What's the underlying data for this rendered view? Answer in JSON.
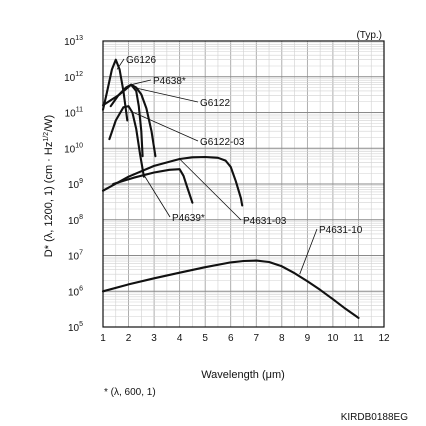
{
  "chart_data": {
    "type": "line",
    "title": "",
    "note_top": "(Typ.)",
    "xlabel": "Wavelength (μm)",
    "ylabel": "D* (λ, 1200, 1) (cm · Hz1/2/W)",
    "ylabel_parts": {
      "main": "D* (λ, 1200, 1) (cm · Hz",
      "sup": "1/2",
      "tail": "/W)"
    },
    "xlim": [
      1,
      12
    ],
    "ylim": [
      100000,
      10000000000000
    ],
    "yscale": "log",
    "grid": true,
    "xticks": [
      "1",
      "2",
      "3",
      "4",
      "5",
      "6",
      "7",
      "8",
      "9",
      "10",
      "11",
      "12"
    ],
    "yticks": [
      {
        "base": "10",
        "exp": "5"
      },
      {
        "base": "10",
        "exp": "6"
      },
      {
        "base": "10",
        "exp": "7"
      },
      {
        "base": "10",
        "exp": "8"
      },
      {
        "base": "10",
        "exp": "9"
      },
      {
        "base": "10",
        "exp": "10"
      },
      {
        "base": "10",
        "exp": "11"
      },
      {
        "base": "10",
        "exp": "12"
      },
      {
        "base": "10",
        "exp": "13"
      }
    ],
    "series": [
      {
        "name": "G6126",
        "x": [
          1.0,
          1.15,
          1.35,
          1.5,
          1.65,
          1.8,
          1.95
        ],
        "y": [
          120000000000.0,
          350000000000.0,
          1600000000000.0,
          3000000000000.0,
          1600000000000.0,
          400000000000.0,
          60000000000.0
        ]
      },
      {
        "name": "P4638*",
        "x": [
          1.0,
          1.3,
          1.6,
          1.9,
          2.1,
          2.3,
          2.5,
          2.7,
          2.9,
          3.05
        ],
        "y": [
          160000000000.0,
          220000000000.0,
          300000000000.0,
          450000000000.0,
          600000000000.0,
          500000000000.0,
          320000000000.0,
          130000000000.0,
          30000000000.0,
          6000000000.0
        ]
      },
      {
        "name": "G6122",
        "x": [
          1.3,
          1.6,
          1.9,
          2.1,
          2.3,
          2.4,
          2.5,
          2.55
        ],
        "y": [
          150000000000.0,
          300000000000.0,
          500000000000.0,
          600000000000.0,
          400000000000.0,
          150000000000.0,
          30000000000.0,
          6000000000.0
        ]
      },
      {
        "name": "G6122-03",
        "x": [
          1.25,
          1.5,
          1.8,
          2.0,
          2.15,
          2.3,
          2.45,
          2.6
        ],
        "y": [
          18000000000.0,
          60000000000.0,
          140000000000.0,
          150000000000.0,
          100000000000.0,
          35000000000.0,
          7000000000.0,
          1600000000.0
        ]
      },
      {
        "name": "P4639*",
        "x": [
          1.4,
          2.2,
          3.0,
          3.6,
          4.0,
          4.15,
          4.3,
          4.5
        ],
        "y": [
          1000000000.0,
          1500000000.0,
          2100000000.0,
          2500000000.0,
          2600000000.0,
          1700000000.0,
          800000000.0,
          300000000.0
        ]
      },
      {
        "name": "P4631-03",
        "x": [
          1.0,
          2.0,
          3.0,
          4.0,
          4.5,
          5.0,
          5.5,
          5.8,
          6.0,
          6.2,
          6.4,
          6.45
        ],
        "y": [
          650000000.0,
          1600000000.0,
          3200000000.0,
          5000000000.0,
          5600000000.0,
          5700000000.0,
          5400000000.0,
          4500000000.0,
          3000000000.0,
          1200000000.0,
          400000000.0,
          250000000.0
        ]
      },
      {
        "name": "P4631-10",
        "x": [
          1.0,
          2.0,
          3.0,
          4.0,
          5.0,
          6.0,
          6.5,
          7.0,
          7.5,
          8.0,
          8.5,
          9.0,
          9.5,
          10.0,
          10.5,
          11.0
        ],
        "y": [
          1000000.0,
          1550000.0,
          2300000.0,
          3300000.0,
          4700000.0,
          6400000.0,
          7000000.0,
          7200000.0,
          6600000.0,
          5000000.0,
          3200000.0,
          1900000.0,
          1100000.0,
          600000.0,
          320000.0,
          180000.0
        ]
      }
    ],
    "labels": [
      {
        "series": "G6126",
        "text": "G6126"
      },
      {
        "series": "P4638*",
        "text": "P4638*"
      },
      {
        "series": "G6122",
        "text": "G6122"
      },
      {
        "series": "G6122-03",
        "text": "G6122-03"
      },
      {
        "series": "P4639*",
        "text": "P4639*"
      },
      {
        "series": "P4631-03",
        "text": "P4631-03"
      },
      {
        "series": "P4631-10",
        "text": "P4631-10"
      }
    ],
    "footnote": "* (λ, 600, 1)",
    "code": "KIRDB0188EG",
    "line_color": "#111111"
  }
}
